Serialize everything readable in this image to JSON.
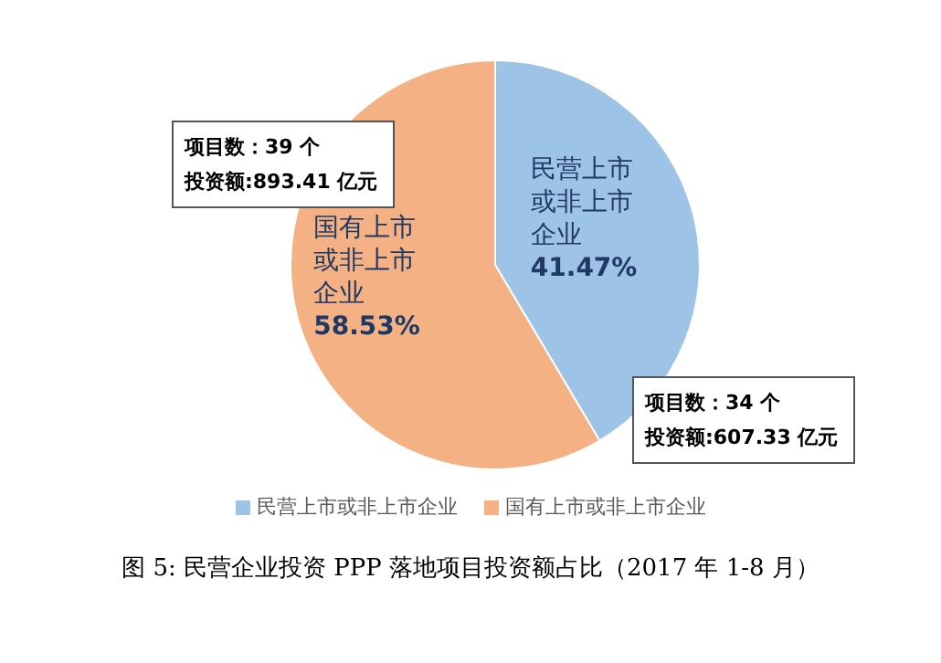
{
  "chart_data": {
    "type": "pie",
    "title": "图 5: 民营企业投资 PPP 落地项目投资额占比（2017 年 1-8 月）",
    "categories": [
      "民营上市或非上市企业",
      "国有上市或非上市企业"
    ],
    "values": [
      41.47,
      58.53
    ],
    "value_labels": [
      "41.47%",
      "58.53%"
    ],
    "colors": [
      "#9dc3e6",
      "#f4b183"
    ],
    "legend": "bottom",
    "annotations": [
      "项目数：34 个",
      "投资额:607.33 亿元",
      "项目数：39 个",
      "投资额:893.41 亿元"
    ]
  }
}
